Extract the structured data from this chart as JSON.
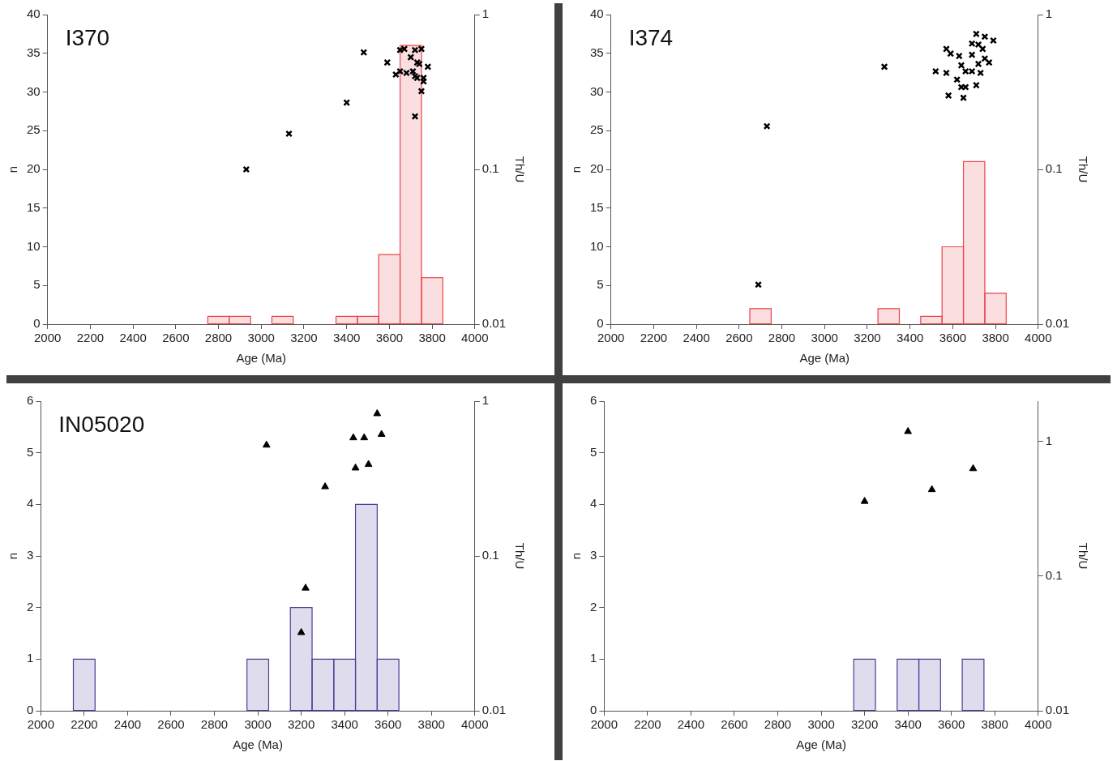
{
  "chart_data": [
    {
      "type": "bar",
      "title": "I370",
      "xlabel": "Age (Ma)",
      "ylabel": "n",
      "y2label": "Th/U",
      "log": "y2",
      "legend": false,
      "grid": false,
      "xlim": [
        2000,
        4000
      ],
      "xticks": [
        2000,
        2200,
        2400,
        2600,
        2800,
        3000,
        3200,
        3400,
        3600,
        3800,
        4000
      ],
      "ylim": [
        0,
        40
      ],
      "yticks": [
        0,
        5,
        10,
        15,
        20,
        25,
        30,
        35,
        40
      ],
      "y2lim": [
        0.01,
        1
      ],
      "y2ticks": [
        1,
        0.1,
        0.01
      ],
      "series": [
        {
          "type": "bar",
          "color": "#e8474c",
          "x": [
            2800,
            2900,
            3000,
            3100,
            3200,
            3300,
            3400,
            3500,
            3600,
            3700,
            3800
          ],
          "values": [
            1,
            1,
            0,
            1,
            0,
            0,
            1,
            1,
            9,
            36,
            6
          ]
        },
        {
          "type": "scatter",
          "axis": "y2",
          "color": "#000000",
          "marker": "cross",
          "x": [
            2930,
            3130,
            3400,
            3480,
            3590,
            3650,
            3670,
            3720,
            3750,
            3700,
            3730,
            3740,
            3780,
            3630,
            3650,
            3680,
            3710,
            3720,
            3730,
            3760,
            3760,
            3750,
            3720
          ],
          "values": [
            0.1,
            0.17,
            0.27,
            0.57,
            0.49,
            0.59,
            0.6,
            0.59,
            0.6,
            0.53,
            0.49,
            0.48,
            0.46,
            0.41,
            0.43,
            0.42,
            0.43,
            0.4,
            0.39,
            0.37,
            0.39,
            0.32,
            0.22
          ]
        }
      ]
    },
    {
      "type": "bar",
      "title": "I374",
      "xlabel": "Age (Ma)",
      "ylabel": "n",
      "y2label": "Th/U",
      "log": "y2",
      "legend": false,
      "grid": false,
      "xlim": [
        2000,
        4000
      ],
      "xticks": [
        2000,
        2200,
        2400,
        2600,
        2800,
        3000,
        3200,
        3400,
        3600,
        3800,
        4000
      ],
      "ylim": [
        0,
        40
      ],
      "yticks": [
        0,
        5,
        10,
        15,
        20,
        25,
        30,
        35,
        40
      ],
      "y2lim": [
        0.01,
        1
      ],
      "y2ticks": [
        1,
        0.1,
        0.01
      ],
      "series": [
        {
          "type": "bar",
          "color": "#e8474c",
          "x": [
            2700,
            2800,
            2900,
            3000,
            3100,
            3200,
            3300,
            3400,
            3500,
            3600,
            3700,
            3800
          ],
          "values": [
            2,
            0,
            0,
            0,
            0,
            0,
            2,
            0,
            1,
            10,
            21,
            4
          ]
        },
        {
          "type": "scatter",
          "axis": "y2",
          "color": "#000000",
          "marker": "cross",
          "x": [
            2690,
            2730,
            3280,
            3710,
            3750,
            3790,
            3690,
            3720,
            3740,
            3570,
            3590,
            3630,
            3690,
            3750,
            3770,
            3720,
            3640,
            3520,
            3570,
            3660,
            3690,
            3730,
            3620,
            3640,
            3660,
            3710,
            3580,
            3650
          ],
          "values": [
            0.018,
            0.19,
            0.46,
            0.75,
            0.72,
            0.68,
            0.65,
            0.64,
            0.6,
            0.6,
            0.56,
            0.54,
            0.55,
            0.52,
            0.49,
            0.48,
            0.47,
            0.43,
            0.42,
            0.43,
            0.43,
            0.42,
            0.38,
            0.34,
            0.34,
            0.35,
            0.3,
            0.29
          ]
        }
      ]
    },
    {
      "type": "bar",
      "title": "IN05020",
      "xlabel": "Age (Ma)",
      "ylabel": "n",
      "y2label": "Th/U",
      "log": "y2",
      "legend": false,
      "grid": false,
      "xlim": [
        2000,
        4000
      ],
      "xticks": [
        2000,
        2200,
        2400,
        2600,
        2800,
        3000,
        3200,
        3400,
        3600,
        3800,
        4000
      ],
      "ylim": [
        0,
        6
      ],
      "yticks": [
        0,
        1,
        2,
        3,
        4,
        5,
        6
      ],
      "y2lim": [
        0.01,
        1
      ],
      "y2ticks": [
        1,
        0.1,
        0.01
      ],
      "series": [
        {
          "type": "bar",
          "color": "#4b3f9a",
          "x": [
            2200,
            2300,
            2400,
            2500,
            2600,
            2700,
            2800,
            2900,
            3000,
            3100,
            3200,
            3300,
            3400,
            3500,
            3600
          ],
          "values": [
            1,
            0,
            0,
            0,
            0,
            0,
            0,
            0,
            1,
            0,
            2,
            1,
            1,
            4,
            1
          ]
        },
        {
          "type": "scatter",
          "axis": "y2",
          "color": "#000000",
          "marker": "triangle",
          "x": [
            3040,
            3220,
            3200,
            3310,
            3440,
            3490,
            3450,
            3510,
            3550,
            3570
          ],
          "values": [
            0.52,
            0.062,
            0.032,
            0.28,
            0.58,
            0.58,
            0.37,
            0.39,
            0.83,
            0.61
          ]
        }
      ]
    },
    {
      "type": "bar",
      "xlabel": "Age (Ma)",
      "ylabel": "n",
      "y2label": "Th/U",
      "log": "y2",
      "legend": false,
      "grid": false,
      "xlim": [
        2000,
        4000
      ],
      "xticks": [
        2000,
        2200,
        2400,
        2600,
        2800,
        3000,
        3200,
        3400,
        3600,
        3800,
        4000
      ],
      "ylim": [
        0,
        6
      ],
      "yticks": [
        0,
        1,
        2,
        3,
        4,
        5,
        6
      ],
      "y2lim": [
        0.01,
        2
      ],
      "y2ticks": [
        1,
        0.1,
        0.01
      ],
      "series": [
        {
          "type": "bar",
          "color": "#4b3f9a",
          "x": [
            3200,
            3300,
            3400,
            3500,
            3600,
            3700
          ],
          "values": [
            1,
            0,
            1,
            1,
            0,
            1
          ]
        },
        {
          "type": "scatter",
          "axis": "y2",
          "color": "#000000",
          "marker": "triangle",
          "x": [
            3200,
            3400,
            3510,
            3700
          ],
          "values": [
            0.36,
            1.19,
            0.44,
            0.63
          ]
        }
      ]
    }
  ]
}
